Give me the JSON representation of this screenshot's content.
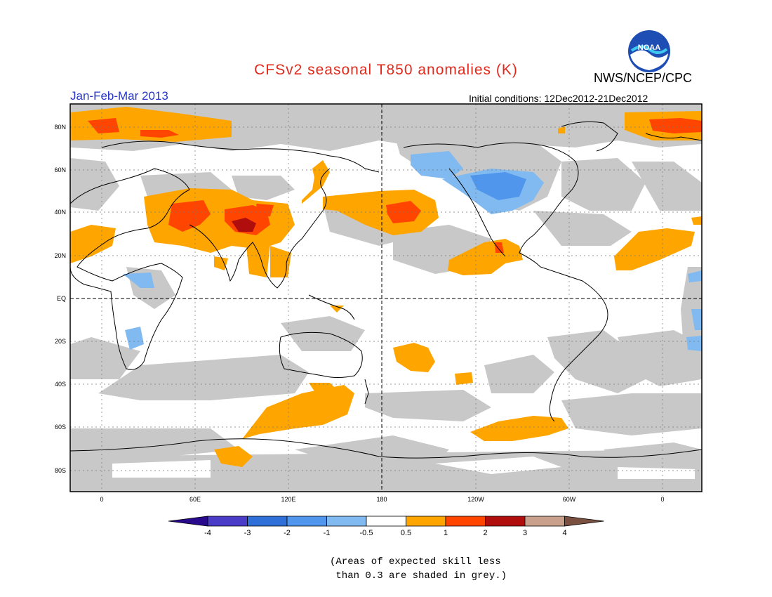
{
  "header": {
    "title": "CFSv2 seasonal T850 anomalies (K)",
    "period": "Jan-Feb-Mar 2013",
    "agency": "NWS/NCEP/CPC",
    "initial_conditions": "Initial conditions: 12Dec2012-21Dec2012",
    "logo_text": "NOAA"
  },
  "map": {
    "lat_labels": [
      "80N",
      "60N",
      "40N",
      "20N",
      "EQ",
      "20S",
      "40S",
      "60S",
      "80S"
    ],
    "lon_labels": [
      "0",
      "60E",
      "120E",
      "180",
      "120W",
      "60W",
      "0"
    ],
    "skill_mask_color": "#c8c8c8",
    "coastline_color": "#000000"
  },
  "colorbar": {
    "labels": [
      "-4",
      "-3",
      "-2",
      "-1",
      "-0.5",
      "0.5",
      "1",
      "2",
      "3",
      "4"
    ],
    "colors": [
      "#2a0a8c",
      "#4b3cc8",
      "#2f6fd8",
      "#4f96ec",
      "#80baf0",
      "#ffffff",
      "#ffa500",
      "#ff4500",
      "#b00d0d",
      "#c9a08c",
      "#7a5040"
    ]
  },
  "note": {
    "line1": "(Areas of expected skill less",
    "line2": " than 0.3 are shaded in grey.)"
  }
}
